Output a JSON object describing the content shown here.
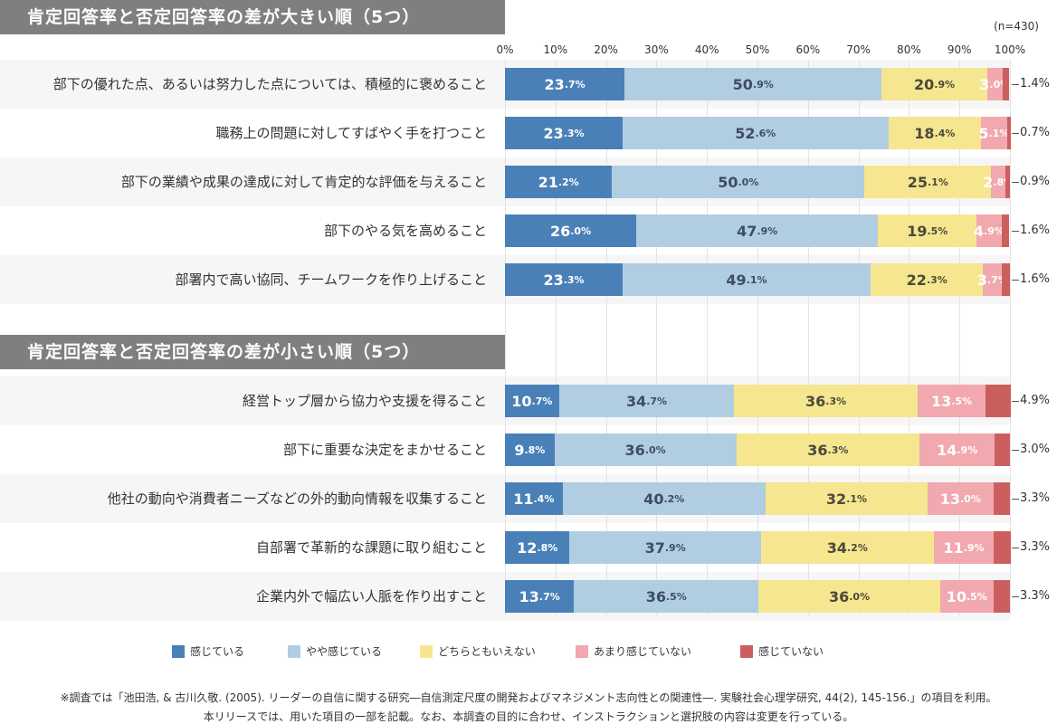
{
  "sample_size": "(n=430)",
  "footnotes": [
    "※調査では「池田浩, & 古川久敬. (2005). リーダーの自信に関する研究―自信測定尺度の開発およびマネジメント志向性との関連性―. 実験社会心理学研究, 44(2), 145-156.」の項目を利用。",
    "本リリースでは、用いた項目の一部を記載。なお、本調査の目的に合わせ、インストラクションと選択肢の内容は変更を行っている。"
  ],
  "colors": {
    "感じている": "#4a80b8",
    "やや感じている": "#b1cde2",
    "どちらともいえない": "#f7e690",
    "あまり感じていない": "#f1a8ae",
    "感じていない": "#cb5f5d",
    "header_bg": "#7f7f7f"
  },
  "chart_data": [
    {
      "type": "bar",
      "orientation": "horizontal-stacked-100",
      "title": "肯定回答率と否定回答率の差が大きい順（5つ）",
      "xlim": [
        0,
        100
      ],
      "xticks": [
        "0%",
        "10%",
        "20%",
        "30%",
        "40%",
        "50%",
        "60%",
        "70%",
        "80%",
        "90%",
        "100%"
      ],
      "grid": true,
      "legend_position": "bottom",
      "categories": [
        "部下の優れた点、あるいは努力した点については、積極的に褒めること",
        "職務上の問題に対してすばやく手を打つこと",
        "部下の業績や成果の達成に対して肯定的な評価を与えること",
        "部下のやる気を高めること",
        "部署内で高い協同、チームワークを作り上げること"
      ],
      "series": [
        {
          "name": "感じている",
          "values": [
            23.7,
            23.3,
            21.2,
            26.0,
            23.3
          ]
        },
        {
          "name": "やや感じている",
          "values": [
            50.9,
            52.6,
            50.0,
            47.9,
            49.1
          ]
        },
        {
          "name": "どちらともいえない",
          "values": [
            20.9,
            18.4,
            25.1,
            19.5,
            22.3
          ]
        },
        {
          "name": "あまり感じていない",
          "values": [
            3.0,
            5.1,
            2.8,
            4.9,
            3.7
          ]
        },
        {
          "name": "感じていない",
          "values": [
            1.4,
            0.7,
            0.9,
            1.6,
            1.6
          ]
        }
      ]
    },
    {
      "type": "bar",
      "orientation": "horizontal-stacked-100",
      "title": "肯定回答率と否定回答率の差が小さい順（5つ）",
      "xlim": [
        0,
        100
      ],
      "grid": true,
      "legend_position": "bottom",
      "categories": [
        "経営トップ層から協力や支援を得ること",
        "部下に重要な決定をまかせること",
        "他社の動向や消費者ニーズなどの外的動向情報を収集すること",
        "自部署で革新的な課題に取り組むこと",
        "企業内外で幅広い人脈を作り出すこと"
      ],
      "series": [
        {
          "name": "感じている",
          "values": [
            10.7,
            9.8,
            11.4,
            12.8,
            13.7
          ]
        },
        {
          "name": "やや感じている",
          "values": [
            34.7,
            36.0,
            40.2,
            37.9,
            36.5
          ]
        },
        {
          "name": "どちらともいえない",
          "values": [
            36.3,
            36.3,
            32.1,
            34.2,
            36.0
          ]
        },
        {
          "name": "あまり感じていない",
          "values": [
            13.5,
            14.9,
            13.0,
            11.9,
            10.5
          ]
        },
        {
          "name": "感じていない",
          "values": [
            4.9,
            3.0,
            3.3,
            3.3,
            3.3
          ]
        }
      ]
    }
  ]
}
